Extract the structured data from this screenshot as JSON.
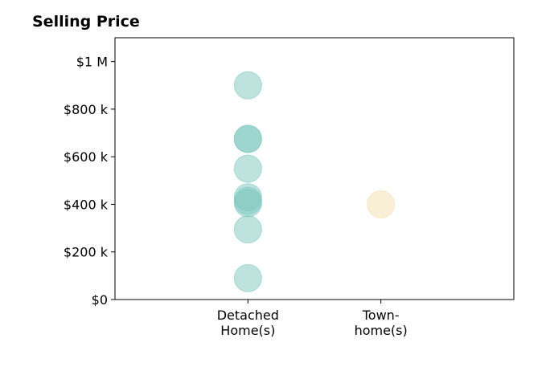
{
  "chart_data": {
    "type": "scatter",
    "title": "Selling Price",
    "xlabel": "",
    "ylabel": "",
    "categories": [
      "Detached\nHome(s)",
      "Town-\nhome(s)"
    ],
    "ylim": [
      0,
      1100000
    ],
    "yticks": [
      {
        "value": 0,
        "label": "$0"
      },
      {
        "value": 200000,
        "label": "$200 k"
      },
      {
        "value": 400000,
        "label": "$400 k"
      },
      {
        "value": 600000,
        "label": "$600 k"
      },
      {
        "value": 800000,
        "label": "$800 k"
      },
      {
        "value": 1000000,
        "label": "$1 M"
      }
    ],
    "grid": false,
    "series": [
      {
        "category": "Detached\nHome(s)",
        "color": "#7ec8bf",
        "values": [
          900000,
          675000,
          675000,
          550000,
          430000,
          415000,
          405000,
          295000,
          90000
        ]
      },
      {
        "category": "Town-\nhome(s)",
        "color": "#f3dfb0",
        "values": [
          400000
        ]
      }
    ]
  }
}
